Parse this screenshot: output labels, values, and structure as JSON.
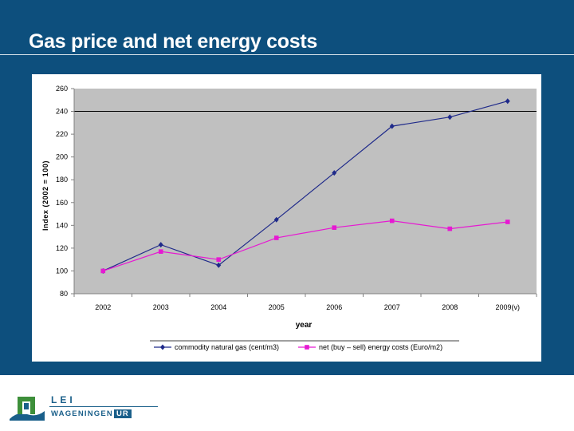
{
  "slide": {
    "title": "Gas price and net energy costs",
    "colors": {
      "background": "#0d4f7d",
      "plot_area": "#c0c0c0"
    }
  },
  "logo": {
    "line1": "LEI",
    "line2": "WAGENINGEN",
    "line2_box": "UR"
  },
  "chart_data": {
    "type": "line",
    "title": "",
    "xlabel": "year",
    "ylabel": "Index (2002 = 100)",
    "categories": [
      "2002",
      "2003",
      "2004",
      "2005",
      "2006",
      "2007",
      "2008",
      "2009(v)"
    ],
    "ylim": [
      80,
      260
    ],
    "yticks": [
      80,
      100,
      120,
      140,
      160,
      180,
      200,
      220,
      240,
      260
    ],
    "reference_line": 240,
    "grid": false,
    "legend_position": "bottom",
    "series": [
      {
        "name": "commodity natural gas (cent/m3)",
        "color": "#1f2a8a",
        "marker": "diamond",
        "values": [
          100,
          123,
          105,
          145,
          186,
          227,
          235,
          249
        ]
      },
      {
        "name": "net (buy – sell) energy costs  (Euro/m2)",
        "color": "#e619d2",
        "marker": "square",
        "values": [
          100,
          117,
          110,
          129,
          138,
          144,
          137,
          143
        ]
      }
    ]
  }
}
